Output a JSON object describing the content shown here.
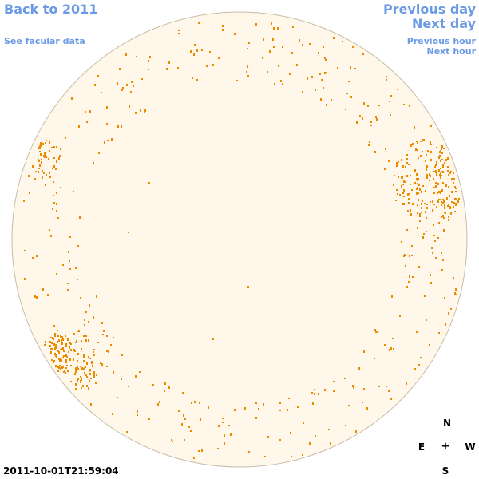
{
  "nav": {
    "back_label": "Back to 2011",
    "facular_label": "See facular data",
    "previous_day_label": "Previous day",
    "next_day_label": "Next day",
    "previous_hour_label": "Previous hour",
    "next_hour_label": "Next hour"
  },
  "compass": {
    "north": "N",
    "south": "S",
    "east": "E",
    "west": "W",
    "center": "+"
  },
  "timestamp": "2011-10-01T21:59:04",
  "colors": {
    "link": "#6a9ae6",
    "disk_fill": "#fff8ea",
    "disk_edge": "#c8bca8",
    "facula": "#ee8a00"
  }
}
